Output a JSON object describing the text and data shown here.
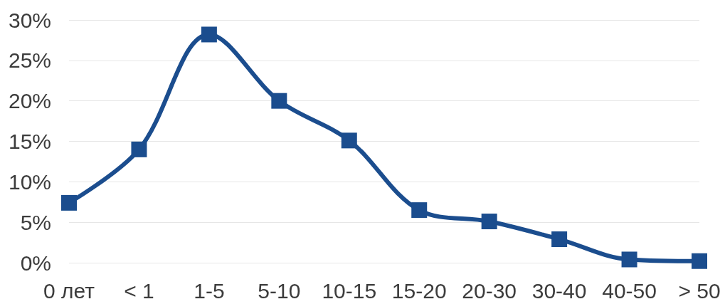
{
  "chart_data": {
    "type": "line",
    "categories": [
      "0 лет",
      "< 1",
      "1-5",
      "5-10",
      "10-15",
      "15-20",
      "20-30",
      "30-40",
      "40-50",
      "> 50"
    ],
    "values": [
      7.4,
      14.0,
      28.2,
      20.0,
      15.1,
      6.5,
      5.1,
      2.9,
      0.4,
      0.2
    ],
    "color": "#1b4d8e",
    "ylim": [
      0,
      30
    ],
    "yticks": [
      {
        "value": 0,
        "label": "0%"
      },
      {
        "value": 5,
        "label": "5%"
      },
      {
        "value": 10,
        "label": "10%"
      },
      {
        "value": 15,
        "label": "15%"
      },
      {
        "value": 20,
        "label": "20%"
      },
      {
        "value": 25,
        "label": "25%"
      },
      {
        "value": 30,
        "label": "30%"
      }
    ],
    "grid": "y",
    "marker": "square",
    "line_style": "solid"
  }
}
